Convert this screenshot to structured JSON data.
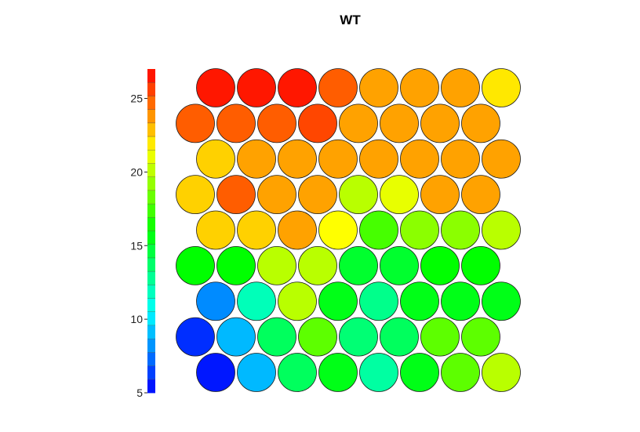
{
  "chart_data": {
    "type": "heatmap",
    "title": "WT",
    "xlabel": "",
    "ylabel": "",
    "color_scale": {
      "min": 5,
      "max": 27,
      "ticks": [
        5,
        10,
        15,
        20,
        25
      ],
      "palette": "rainbow red-to-blue",
      "placement": "left"
    },
    "grid": {
      "rows": 9,
      "cols": 8,
      "layout": "hexagonal"
    },
    "rows_top_to_bottom": [
      [
        26.5,
        26.5,
        26.5,
        25,
        23.5,
        23.5,
        23.5,
        22
      ],
      [
        25,
        25,
        25,
        25.5,
        23.5,
        23.5,
        23.5,
        23.5
      ],
      [
        22.5,
        23.5,
        23.5,
        23.5,
        23.5,
        23.5,
        23.5,
        23.5
      ],
      [
        22.5,
        25,
        23.5,
        23.5,
        20,
        21,
        23.5,
        23.5
      ],
      [
        22.5,
        22.5,
        23.5,
        21.5,
        17.5,
        19,
        19,
        20
      ],
      [
        16,
        16,
        20,
        20,
        15,
        15,
        16,
        16
      ],
      [
        8,
        12,
        20,
        15.5,
        13,
        15.5,
        15.5,
        15.5
      ],
      [
        6,
        9,
        14,
        18,
        13.5,
        14,
        18,
        18
      ],
      [
        5.5,
        9,
        14,
        15.5,
        12.5,
        15.5,
        18,
        20
      ]
    ]
  }
}
